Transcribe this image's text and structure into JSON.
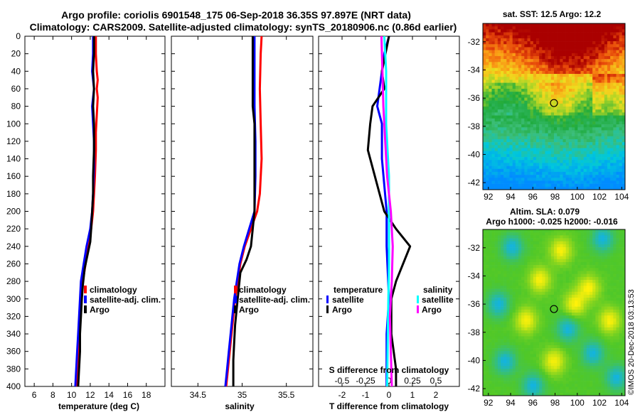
{
  "titles": {
    "line1": "Argo profile: coriolis 6901548_175 06-Sep-2018 36.35S 97.897E (NRT data)",
    "line2": "Climatology: CARS2009. Satellite-adjusted climatology: synTS_20180906.nc (0.86d earlier)"
  },
  "credit": "©IMOS 20-Dec-2018 03:13:53",
  "colors": {
    "climatology": "#ff0000",
    "satellite": "#0000ff",
    "argo": "#000000",
    "salinity_satellite": "#00ffff",
    "salinity_argo": "#ff00ff"
  },
  "chart_data": [
    {
      "type": "line",
      "id": "temperature",
      "xlabel": "temperature (deg C)",
      "xlim": [
        5,
        20
      ],
      "xticks": [
        6,
        8,
        10,
        12,
        14,
        16,
        18
      ],
      "xtick_labels": [
        "6",
        "8",
        "10",
        "12",
        "14",
        "16",
        "18"
      ],
      "ylim": [
        0,
        400
      ],
      "yticks": [
        0,
        20,
        40,
        60,
        80,
        100,
        120,
        140,
        160,
        180,
        200,
        220,
        240,
        260,
        280,
        300,
        320,
        340,
        360,
        380,
        400
      ],
      "y_inverted": true,
      "legend": {
        "position": "lower-center",
        "entries": [
          "climatology",
          "satellite-adj. clim.",
          "Argo"
        ]
      },
      "series": [
        {
          "name": "climatology",
          "color_key": "climatology",
          "points": [
            [
              12.6,
              0
            ],
            [
              12.6,
              20
            ],
            [
              12.7,
              40
            ],
            [
              12.8,
              50
            ],
            [
              12.7,
              60
            ],
            [
              12.8,
              70
            ],
            [
              12.7,
              90
            ],
            [
              12.6,
              110
            ],
            [
              12.6,
              130
            ],
            [
              12.5,
              160
            ],
            [
              12.4,
              180
            ],
            [
              12.3,
              200
            ],
            [
              12.1,
              220
            ],
            [
              11.8,
              240
            ],
            [
              11.5,
              260
            ],
            [
              11.2,
              280
            ],
            [
              11.0,
              300
            ],
            [
              10.9,
              320
            ],
            [
              10.8,
              340
            ],
            [
              10.7,
              360
            ],
            [
              10.6,
              380
            ],
            [
              10.5,
              400
            ]
          ]
        },
        {
          "name": "satellite-adj. clim.",
          "color_key": "satellite",
          "points": [
            [
              12.3,
              0
            ],
            [
              12.3,
              20
            ],
            [
              12.2,
              40
            ],
            [
              12.4,
              60
            ],
            [
              12.2,
              80
            ],
            [
              12.3,
              100
            ],
            [
              12.4,
              120
            ],
            [
              12.4,
              150
            ],
            [
              12.3,
              180
            ],
            [
              12.2,
              200
            ],
            [
              12.0,
              220
            ],
            [
              11.6,
              240
            ],
            [
              11.3,
              260
            ],
            [
              11.0,
              280
            ],
            [
              10.9,
              300
            ],
            [
              10.8,
              320
            ],
            [
              10.7,
              340
            ],
            [
              10.6,
              360
            ],
            [
              10.5,
              380
            ],
            [
              10.4,
              400
            ]
          ]
        },
        {
          "name": "Argo",
          "color_key": "argo",
          "points": [
            [
              12.4,
              0
            ],
            [
              12.4,
              20
            ],
            [
              12.3,
              40
            ],
            [
              12.4,
              60
            ],
            [
              12.3,
              80
            ],
            [
              12.4,
              100
            ],
            [
              12.4,
              130
            ],
            [
              12.3,
              160
            ],
            [
              12.3,
              180
            ],
            [
              12.2,
              200
            ],
            [
              12.1,
              220
            ],
            [
              12.0,
              235
            ],
            [
              11.7,
              250
            ],
            [
              11.4,
              265
            ],
            [
              11.2,
              285
            ],
            [
              11.1,
              300
            ],
            [
              11.0,
              320
            ],
            [
              10.9,
              340
            ],
            [
              10.9,
              360
            ],
            [
              10.8,
              380
            ],
            [
              10.7,
              400
            ]
          ]
        }
      ]
    },
    {
      "type": "line",
      "id": "salinity",
      "xlabel": "salinity",
      "xlim": [
        34.2,
        35.8
      ],
      "xticks": [
        34.5,
        35,
        35.5
      ],
      "xtick_labels": [
        "34.5",
        "35",
        "35.5"
      ],
      "ylim": [
        0,
        400
      ],
      "y_inverted": true,
      "legend": {
        "position": "lower-right",
        "entries": [
          "climatology",
          "satellite-adj. clim.",
          "Argo"
        ]
      },
      "series": [
        {
          "name": "climatology",
          "color_key": "climatology",
          "points": [
            [
              35.22,
              0
            ],
            [
              35.21,
              20
            ],
            [
              35.2,
              60
            ],
            [
              35.21,
              100
            ],
            [
              35.22,
              140
            ],
            [
              35.2,
              180
            ],
            [
              35.17,
              200
            ],
            [
              35.1,
              220
            ],
            [
              35.03,
              240
            ],
            [
              34.98,
              260
            ],
            [
              34.95,
              280
            ],
            [
              34.92,
              300
            ],
            [
              34.9,
              320
            ],
            [
              34.88,
              340
            ],
            [
              34.86,
              360
            ],
            [
              34.84,
              380
            ],
            [
              34.82,
              400
            ]
          ]
        },
        {
          "name": "satellite-adj. clim.",
          "color_key": "satellite",
          "points": [
            [
              35.14,
              0
            ],
            [
              35.14,
              40
            ],
            [
              35.14,
              80
            ],
            [
              35.15,
              120
            ],
            [
              35.15,
              160
            ],
            [
              35.14,
              200
            ],
            [
              35.08,
              220
            ],
            [
              35.02,
              240
            ],
            [
              34.97,
              260
            ],
            [
              34.94,
              280
            ],
            [
              34.91,
              300
            ],
            [
              34.89,
              320
            ],
            [
              34.87,
              340
            ],
            [
              34.85,
              360
            ],
            [
              34.83,
              380
            ],
            [
              34.81,
              400
            ]
          ]
        },
        {
          "name": "Argo",
          "color_key": "argo",
          "points": [
            [
              35.12,
              0
            ],
            [
              35.12,
              40
            ],
            [
              35.12,
              80
            ],
            [
              35.14,
              100
            ],
            [
              35.14,
              150
            ],
            [
              35.14,
              200
            ],
            [
              35.12,
              220
            ],
            [
              35.1,
              240
            ],
            [
              35.05,
              255
            ],
            [
              34.98,
              270
            ],
            [
              34.96,
              290
            ],
            [
              34.94,
              310
            ],
            [
              34.92,
              330
            ],
            [
              34.91,
              350
            ],
            [
              34.9,
              370
            ],
            [
              34.9,
              400
            ]
          ]
        }
      ]
    },
    {
      "type": "line",
      "id": "difference",
      "xlabel": "T difference from climatology",
      "xlim": [
        -3,
        3
      ],
      "xticks": [
        -2,
        -1,
        0,
        1,
        2
      ],
      "xtick_labels": [
        "-2",
        "-1",
        "0",
        "1",
        "2"
      ],
      "top_axis_label": "S difference from climatology",
      "top_ticks": [
        -0.5,
        -0.25,
        0,
        0.25,
        0.5
      ],
      "top_tick_labels": [
        "-0.5",
        "-0.25",
        "0",
        "0.25",
        "0.5"
      ],
      "top_xlim": [
        -0.75,
        0.75
      ],
      "ylim": [
        0,
        400
      ],
      "y_inverted": true,
      "legend": {
        "temperature_title": "temperature",
        "temperature_entries": [
          "satellite",
          "Argo"
        ],
        "salinity_title": "salinity",
        "salinity_entries": [
          "satellite",
          "Argo"
        ]
      },
      "series": [
        {
          "name": "temperature satellite",
          "color_key": "satellite",
          "points": [
            [
              0,
              0
            ],
            [
              -0.2,
              20
            ],
            [
              -0.3,
              40
            ],
            [
              -0.4,
              60
            ],
            [
              -0.5,
              80
            ],
            [
              -0.3,
              100
            ],
            [
              -0.3,
              140
            ],
            [
              -0.1,
              200
            ],
            [
              -0.1,
              240
            ],
            [
              0,
              300
            ],
            [
              -0.1,
              340
            ],
            [
              -0.1,
              400
            ]
          ]
        },
        {
          "name": "temperature Argo",
          "color_key": "argo",
          "points": [
            [
              0,
              0
            ],
            [
              -0.3,
              40
            ],
            [
              -0.2,
              60
            ],
            [
              -0.7,
              80
            ],
            [
              -0.8,
              100
            ],
            [
              -0.9,
              130
            ],
            [
              -0.6,
              160
            ],
            [
              -0.2,
              200
            ],
            [
              0.3,
              220
            ],
            [
              0.9,
              240
            ],
            [
              0.6,
              260
            ],
            [
              0.3,
              280
            ],
            [
              0.1,
              300
            ],
            [
              0.1,
              340
            ],
            [
              0.3,
              380
            ],
            [
              0.3,
              400
            ]
          ]
        },
        {
          "name": "salinity satellite",
          "color_key": "salinity_satellite",
          "points": [
            [
              -0.05,
              0
            ],
            [
              -0.03,
              40
            ],
            [
              -0.03,
              100
            ],
            [
              0,
              160
            ],
            [
              0,
              220
            ],
            [
              0,
              260
            ],
            [
              -0.01,
              320
            ],
            [
              -0.02,
              400
            ]
          ]
        },
        {
          "name": "salinity Argo",
          "color_key": "salinity_argo",
          "points": [
            [
              -0.08,
              0
            ],
            [
              -0.07,
              40
            ],
            [
              -0.06,
              80
            ],
            [
              -0.04,
              120
            ],
            [
              -0.02,
              160
            ],
            [
              0.02,
              200
            ],
            [
              0.04,
              240
            ],
            [
              0.03,
              280
            ],
            [
              0.01,
              320
            ],
            [
              0.02,
              360
            ],
            [
              0.03,
              400
            ]
          ]
        }
      ]
    },
    {
      "type": "heatmap",
      "id": "sst_map",
      "title": "sat. SST: 12.5 Argo: 12.2",
      "xlim": [
        91.5,
        104.3
      ],
      "ylim": [
        -42.5,
        -30.7
      ],
      "xticks": [
        92,
        94,
        96,
        98,
        100,
        102,
        104
      ],
      "xtick_labels": [
        "92",
        "94",
        "96",
        "98",
        "100",
        "102",
        "104"
      ],
      "yticks": [
        -32,
        -34,
        -36,
        -38,
        -40,
        -42
      ],
      "ytick_labels": [
        "-32",
        "-34",
        "-36",
        "-38",
        "-40",
        "-42"
      ],
      "marker": [
        97.9,
        -36.35
      ]
    },
    {
      "type": "heatmap",
      "id": "sla_map",
      "title": "Altim. SLA: 0.079",
      "subtitle": "Argo h1000: -0.025 h2000: -0.016",
      "xlim": [
        91.5,
        104.3
      ],
      "ylim": [
        -42.5,
        -30.7
      ],
      "xticks": [
        92,
        94,
        96,
        98,
        100,
        102,
        104
      ],
      "xtick_labels": [
        "92",
        "94",
        "96",
        "98",
        "100",
        "102",
        "104"
      ],
      "yticks": [
        -32,
        -34,
        -36,
        -38,
        -40,
        -42
      ],
      "ytick_labels": [
        "-32",
        "-34",
        "-36",
        "-38",
        "-40",
        "-42"
      ],
      "marker": [
        97.9,
        -36.35
      ]
    }
  ]
}
